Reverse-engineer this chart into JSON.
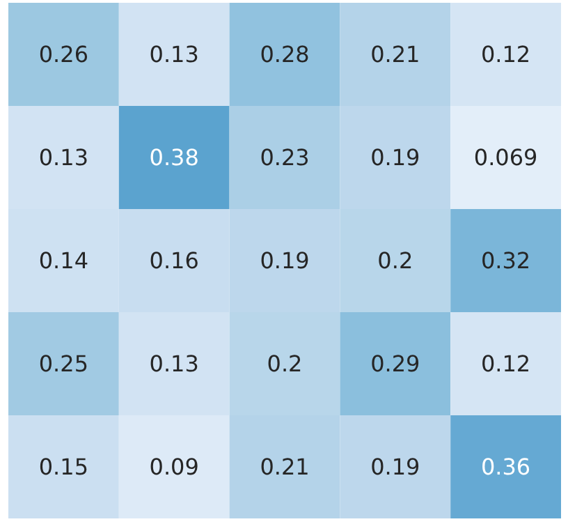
{
  "chart_data": {
    "type": "heatmap",
    "categories": [
      null,
      null,
      null,
      null,
      null
    ],
    "y_categories": [
      null,
      null,
      null,
      null,
      null
    ],
    "cells": [
      [
        0.26,
        0.13,
        0.28,
        0.21,
        0.12
      ],
      [
        0.13,
        0.38,
        0.23,
        0.19,
        0.069
      ],
      [
        0.14,
        0.16,
        0.19,
        0.2,
        0.32
      ],
      [
        0.25,
        0.13,
        0.2,
        0.29,
        0.12
      ],
      [
        0.15,
        0.09,
        0.21,
        0.19,
        0.36
      ]
    ],
    "data_labels": true
  }
}
